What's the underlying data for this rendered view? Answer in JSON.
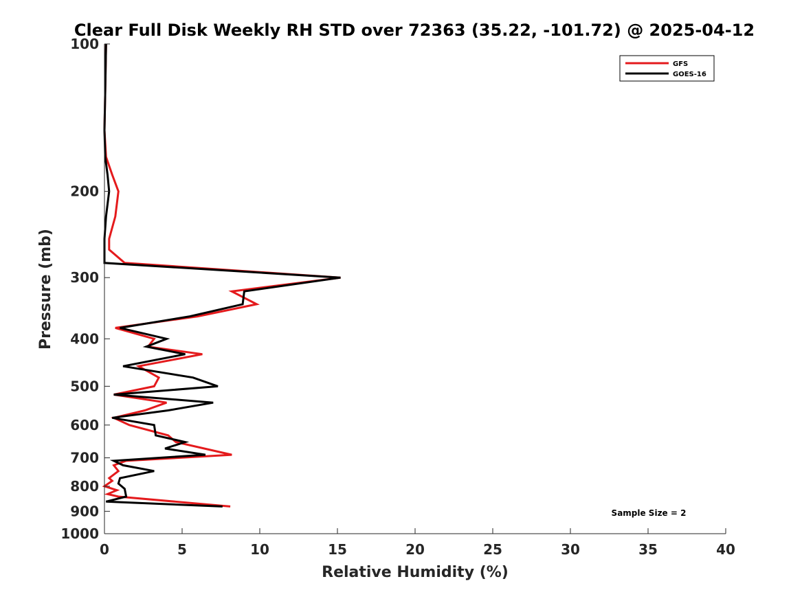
{
  "chart_data": {
    "type": "line",
    "title": "Clear Full Disk Weekly RH STD over 72363 (35.22, -101.72) @ 2025-04-12",
    "xlabel": "Relative Humidity (%)",
    "ylabel": "Pressure (mb)",
    "xlim": [
      0,
      40
    ],
    "ylim": [
      100,
      1000
    ],
    "yscale": "log",
    "yreversed": true,
    "xticks": [
      0,
      5,
      10,
      15,
      20,
      25,
      30,
      35,
      40
    ],
    "xtick_labels": [
      "0",
      "5",
      "10",
      "15",
      "20",
      "25",
      "30",
      "35",
      "40"
    ],
    "yticks": [
      100,
      200,
      300,
      400,
      500,
      600,
      700,
      800,
      900,
      1000
    ],
    "ytick_labels": [
      "100",
      "200",
      "300",
      "400",
      "500",
      "600",
      "700",
      "800",
      "900",
      "1000"
    ],
    "grid": false,
    "legend_position": "top-right",
    "annotation": "Sample Size = 2",
    "series": [
      {
        "name": "GFS",
        "color": "#e41a1c",
        "points": [
          [
            0.1,
            100
          ],
          [
            0.05,
            125
          ],
          [
            0.0,
            150
          ],
          [
            0.1,
            170
          ],
          [
            0.5,
            185
          ],
          [
            0.9,
            200
          ],
          [
            0.7,
            225
          ],
          [
            0.3,
            250
          ],
          [
            0.3,
            263
          ],
          [
            1.3,
            280
          ],
          [
            15.2,
            300
          ],
          [
            8.2,
            320
          ],
          [
            9.8,
            340
          ],
          [
            6.0,
            360
          ],
          [
            0.7,
            380
          ],
          [
            3.2,
            400
          ],
          [
            2.8,
            415
          ],
          [
            6.3,
            430
          ],
          [
            2.2,
            455
          ],
          [
            3.5,
            480
          ],
          [
            3.2,
            500
          ],
          [
            0.6,
            520
          ],
          [
            4.0,
            540
          ],
          [
            2.6,
            560
          ],
          [
            0.6,
            580
          ],
          [
            1.6,
            600
          ],
          [
            4.1,
            630
          ],
          [
            4.6,
            650
          ],
          [
            8.2,
            690
          ],
          [
            1.4,
            710
          ],
          [
            0.6,
            725
          ],
          [
            0.9,
            745
          ],
          [
            0.3,
            770
          ],
          [
            0.5,
            780
          ],
          [
            0.0,
            800
          ],
          [
            0.8,
            815
          ],
          [
            0.2,
            830
          ],
          [
            0.9,
            840
          ],
          [
            8.1,
            880
          ]
        ]
      },
      {
        "name": "GOES-16",
        "color": "#000000",
        "points": [
          [
            0.1,
            100
          ],
          [
            0.05,
            125
          ],
          [
            0.0,
            150
          ],
          [
            0.05,
            170
          ],
          [
            0.2,
            185
          ],
          [
            0.3,
            200
          ],
          [
            0.1,
            225
          ],
          [
            0.0,
            250
          ],
          [
            0.0,
            263
          ],
          [
            0.0,
            280
          ],
          [
            15.2,
            300
          ],
          [
            9.0,
            320
          ],
          [
            8.9,
            340
          ],
          [
            5.5,
            360
          ],
          [
            1.0,
            380
          ],
          [
            4.0,
            400
          ],
          [
            2.7,
            415
          ],
          [
            5.2,
            430
          ],
          [
            1.2,
            455
          ],
          [
            5.7,
            480
          ],
          [
            7.3,
            500
          ],
          [
            0.6,
            520
          ],
          [
            7.0,
            540
          ],
          [
            4.1,
            560
          ],
          [
            0.5,
            580
          ],
          [
            3.2,
            600
          ],
          [
            3.3,
            630
          ],
          [
            5.2,
            650
          ],
          [
            3.9,
            670
          ],
          [
            6.5,
            690
          ],
          [
            0.6,
            710
          ],
          [
            1.2,
            725
          ],
          [
            3.2,
            745
          ],
          [
            1.0,
            770
          ],
          [
            0.9,
            790
          ],
          [
            1.3,
            810
          ],
          [
            1.4,
            840
          ],
          [
            0.1,
            860
          ],
          [
            7.6,
            880
          ]
        ]
      }
    ]
  }
}
